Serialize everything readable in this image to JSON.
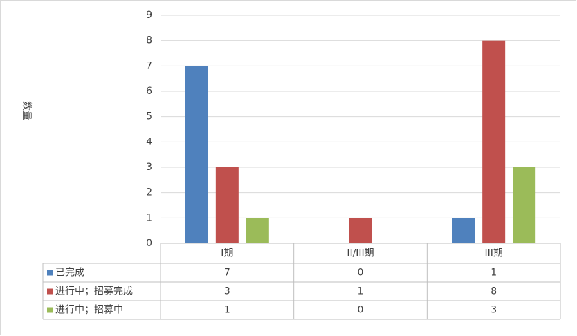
{
  "chart_data": {
    "type": "bar",
    "y_label": "数量",
    "categories": [
      "I期",
      "II/III期",
      "III期"
    ],
    "series": [
      {
        "name": "已完成",
        "color": "#4f81bd",
        "values": [
          7,
          0,
          1
        ]
      },
      {
        "name": "进行中；招募完成",
        "color": "#c0504d",
        "values": [
          3,
          1,
          8
        ]
      },
      {
        "name": "进行中；招募中",
        "color": "#9bbb59",
        "values": [
          1,
          0,
          3
        ]
      }
    ],
    "ylim": [
      0,
      9
    ],
    "yticks": [
      0,
      1,
      2,
      3,
      4,
      5,
      6,
      7,
      8,
      9
    ],
    "grid": true,
    "data_table": true
  }
}
